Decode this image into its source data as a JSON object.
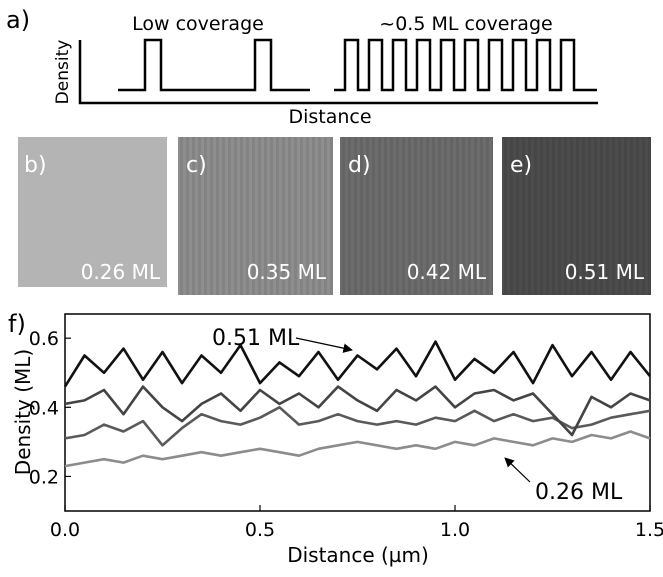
{
  "panel_a": {
    "label": "a)",
    "y_label": "Density",
    "x_label": "Distance",
    "left_title": "Low coverage",
    "right_title": "~0.5 ML coverage"
  },
  "images": [
    {
      "label": "b)",
      "coverage": "0.26 ML"
    },
    {
      "label": "c)",
      "coverage": "0.35 ML"
    },
    {
      "label": "d)",
      "coverage": "0.42 ML"
    },
    {
      "label": "e)",
      "coverage": "0.51 ML"
    }
  ],
  "chart_data": {
    "type": "line",
    "label": "f)",
    "x_label": "Distance (µm)",
    "y_label": "Density (ML)",
    "x": [
      0,
      0.05,
      0.1,
      0.15,
      0.2,
      0.25,
      0.3,
      0.35,
      0.4,
      0.45,
      0.5,
      0.55,
      0.6,
      0.65,
      0.7,
      0.75,
      0.8,
      0.85,
      0.9,
      0.95,
      1.0,
      1.05,
      1.1,
      1.15,
      1.2,
      1.25,
      1.3,
      1.35,
      1.4,
      1.45,
      1.5
    ],
    "xlim": [
      0,
      1.5
    ],
    "xticks": [
      {
        "value": 0,
        "label": "0.0"
      },
      0.5,
      {
        "value": 1,
        "label": "1.0"
      },
      1.5
    ],
    "ylim": [
      0.1,
      0.67
    ],
    "yticks": [
      0.2,
      0.4,
      0.6
    ],
    "series": [
      {
        "color": "#111111",
        "values": [
          0.46,
          0.55,
          0.5,
          0.57,
          0.48,
          0.56,
          0.47,
          0.55,
          0.5,
          0.58,
          0.47,
          0.53,
          0.49,
          0.56,
          0.48,
          0.55,
          0.51,
          0.57,
          0.49,
          0.59,
          0.48,
          0.54,
          0.5,
          0.56,
          0.47,
          0.58,
          0.49,
          0.56,
          0.48,
          0.56,
          0.49
        ]
      },
      {
        "color": "#444444",
        "values": [
          0.41,
          0.42,
          0.45,
          0.38,
          0.46,
          0.4,
          0.36,
          0.41,
          0.44,
          0.39,
          0.45,
          0.41,
          0.44,
          0.4,
          0.46,
          0.42,
          0.39,
          0.45,
          0.42,
          0.46,
          0.4,
          0.44,
          0.45,
          0.42,
          0.44,
          0.38,
          0.32,
          0.43,
          0.4,
          0.44,
          0.42
        ]
      },
      {
        "color": "#5a5a5a",
        "values": [
          0.31,
          0.32,
          0.35,
          0.33,
          0.36,
          0.29,
          0.34,
          0.38,
          0.36,
          0.35,
          0.37,
          0.4,
          0.35,
          0.36,
          0.38,
          0.36,
          0.35,
          0.36,
          0.35,
          0.37,
          0.36,
          0.39,
          0.36,
          0.38,
          0.36,
          0.37,
          0.34,
          0.35,
          0.37,
          0.38,
          0.39
        ]
      },
      {
        "color": "#8c8c8c",
        "values": [
          0.23,
          0.24,
          0.25,
          0.24,
          0.26,
          0.25,
          0.26,
          0.27,
          0.26,
          0.27,
          0.28,
          0.27,
          0.26,
          0.28,
          0.29,
          0.3,
          0.29,
          0.28,
          0.29,
          0.28,
          0.3,
          0.29,
          0.31,
          0.3,
          0.29,
          0.31,
          0.3,
          0.32,
          0.31,
          0.33,
          0.31
        ]
      }
    ],
    "annotations": [
      {
        "text": "0.51 ML"
      },
      {
        "text": "0.26 ML"
      }
    ]
  }
}
